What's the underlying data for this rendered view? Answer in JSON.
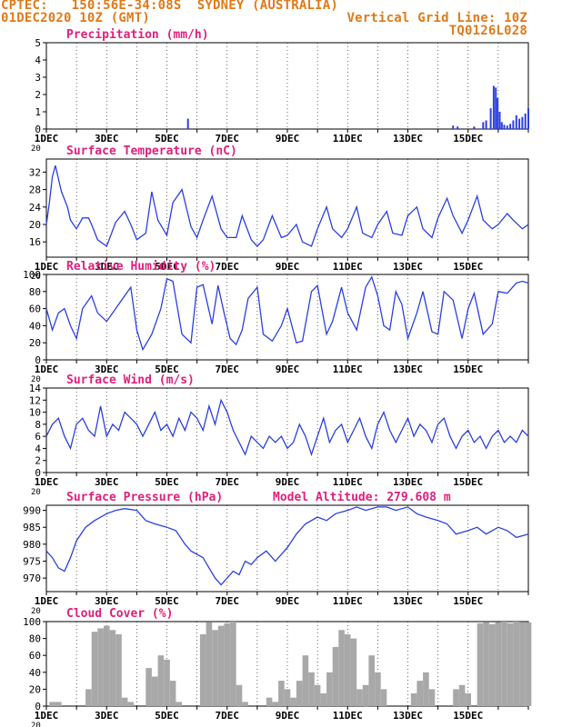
{
  "header": {
    "left_line1": "CPTEC:   150:56E-34:08S  SYDNEY (AUSTRALIA)",
    "left_line2": "01DEC2020 10Z (GMT)",
    "right_line1": "Vertical Grid Line: 10Z",
    "right_line2": "TQ0126L028"
  },
  "colors": {
    "header": "#e07a18",
    "title": "#e0207a",
    "series": "#2b3fe0",
    "cloud": "#a8a8a8",
    "text": "#000000",
    "grid": "#000000"
  },
  "x_ticks": [
    "1DEC",
    "3DEC",
    "5DEC",
    "7DEC",
    "9DEC",
    "11DEC",
    "13DEC",
    "15DEC"
  ],
  "x_axis_stub": "20",
  "chart_data": [
    {
      "id": "precip",
      "type": "bar",
      "title": "Precipitation (mm/h)",
      "ylim": [
        0,
        5
      ],
      "yticks": [
        0,
        1,
        2,
        3,
        4,
        5
      ],
      "x": [
        4.7,
        13.5,
        13.65,
        14.2,
        14.5,
        14.6,
        14.75,
        14.85,
        14.92,
        14.98,
        15.05,
        15.12,
        15.2,
        15.3,
        15.4,
        15.5,
        15.6,
        15.7,
        15.8,
        15.9,
        16.0
      ],
      "values": [
        0.6,
        0.2,
        0.15,
        0.15,
        0.4,
        0.5,
        1.2,
        2.5,
        2.4,
        1.8,
        1.0,
        0.4,
        0.25,
        0.2,
        0.3,
        0.5,
        0.8,
        0.6,
        0.7,
        0.9,
        1.2
      ]
    },
    {
      "id": "temp",
      "type": "line",
      "title": "Surface Temperature (nC)",
      "ylim": [
        12.5,
        35
      ],
      "yticks": [
        16,
        20,
        24,
        28,
        32
      ],
      "x": [
        0,
        0.1,
        0.2,
        0.3,
        0.5,
        0.7,
        0.8,
        1.0,
        1.2,
        1.4,
        1.5,
        1.7,
        2.0,
        2.3,
        2.6,
        2.8,
        3.0,
        3.3,
        3.5,
        3.7,
        4.0,
        4.2,
        4.5,
        4.8,
        5.0,
        5.2,
        5.5,
        5.8,
        6.0,
        6.3,
        6.5,
        6.8,
        7.0,
        7.2,
        7.5,
        7.8,
        8.0,
        8.3,
        8.5,
        8.8,
        9.0,
        9.3,
        9.5,
        9.8,
        10.0,
        10.3,
        10.5,
        10.8,
        11.0,
        11.3,
        11.5,
        11.8,
        12.0,
        12.3,
        12.5,
        12.8,
        13.0,
        13.3,
        13.5,
        13.8,
        14.0,
        14.3,
        14.5,
        14.8,
        15.0,
        15.3,
        15.5,
        15.8,
        16.0
      ],
      "y": [
        20,
        25,
        31,
        33.5,
        27.5,
        24,
        21,
        19,
        21.5,
        21.5,
        20,
        16.5,
        15,
        20.5,
        23,
        20,
        16.5,
        18,
        27.5,
        21,
        17.5,
        25,
        28,
        19.5,
        17,
        21,
        26.5,
        19,
        17,
        17,
        22,
        16.5,
        15,
        16.5,
        22,
        17,
        17.5,
        20,
        16,
        15,
        19,
        24,
        19,
        17,
        19,
        24,
        18,
        17,
        20,
        23,
        18,
        17.5,
        22,
        24,
        19,
        17,
        21.5,
        26,
        22,
        18,
        21,
        26.5,
        21,
        19,
        20,
        22.5,
        21,
        19,
        20
      ]
    },
    {
      "id": "rh",
      "type": "line",
      "title": "Relative Humidity (%)",
      "ylim": [
        0,
        100
      ],
      "yticks": [
        0,
        20,
        40,
        60,
        80,
        100
      ],
      "x": [
        0,
        0.2,
        0.4,
        0.6,
        0.8,
        1.0,
        1.2,
        1.5,
        1.7,
        2.0,
        2.3,
        2.6,
        2.8,
        3.0,
        3.2,
        3.5,
        3.8,
        4.0,
        4.2,
        4.5,
        4.8,
        5.0,
        5.2,
        5.5,
        5.7,
        5.9,
        6.1,
        6.3,
        6.5,
        6.7,
        7.0,
        7.2,
        7.5,
        7.8,
        8.0,
        8.3,
        8.5,
        8.8,
        9.0,
        9.3,
        9.5,
        9.8,
        10.0,
        10.3,
        10.6,
        10.8,
        11.0,
        11.2,
        11.4,
        11.6,
        11.8,
        12.0,
        12.3,
        12.5,
        12.8,
        13.0,
        13.2,
        13.5,
        13.8,
        14.0,
        14.2,
        14.5,
        14.8,
        15.0,
        15.3,
        15.6,
        15.8,
        16.0
      ],
      "y": [
        60,
        35,
        55,
        60,
        40,
        25,
        60,
        75,
        55,
        45,
        60,
        75,
        85,
        35,
        12,
        30,
        60,
        95,
        92,
        30,
        20,
        85,
        88,
        42,
        87,
        55,
        25,
        18,
        35,
        72,
        85,
        30,
        22,
        40,
        60,
        20,
        22,
        80,
        87,
        30,
        45,
        85,
        55,
        35,
        85,
        97,
        75,
        40,
        35,
        80,
        65,
        25,
        55,
        80,
        33,
        30,
        80,
        70,
        25,
        60,
        78,
        30,
        42,
        80,
        78,
        90,
        92,
        90
      ]
    },
    {
      "id": "wind",
      "type": "line",
      "title": "Surface Wind (m/s)",
      "ylim": [
        0,
        14
      ],
      "yticks": [
        0,
        2,
        4,
        6,
        8,
        10,
        12,
        14
      ],
      "x": [
        0,
        0.2,
        0.4,
        0.6,
        0.8,
        1.0,
        1.2,
        1.4,
        1.6,
        1.8,
        2.0,
        2.2,
        2.4,
        2.6,
        2.8,
        3.0,
        3.2,
        3.4,
        3.6,
        3.8,
        4.0,
        4.2,
        4.4,
        4.6,
        4.8,
        5.0,
        5.2,
        5.4,
        5.6,
        5.8,
        6.0,
        6.2,
        6.4,
        6.6,
        6.8,
        7.0,
        7.2,
        7.4,
        7.6,
        7.8,
        8.0,
        8.2,
        8.4,
        8.6,
        8.8,
        9.0,
        9.2,
        9.4,
        9.6,
        9.8,
        10.0,
        10.2,
        10.4,
        10.6,
        10.8,
        11.0,
        11.2,
        11.4,
        11.6,
        11.8,
        12.0,
        12.2,
        12.4,
        12.6,
        12.8,
        13.0,
        13.2,
        13.4,
        13.6,
        13.8,
        14.0,
        14.2,
        14.4,
        14.6,
        14.8,
        15.0,
        15.2,
        15.4,
        15.6,
        15.8,
        16.0
      ],
      "y": [
        6,
        8,
        9,
        6,
        4,
        8,
        9,
        7,
        6,
        11,
        6,
        8,
        7,
        10,
        9,
        8,
        6,
        8,
        10,
        7,
        8,
        6,
        9,
        7,
        10,
        9,
        7,
        11,
        8,
        12,
        10,
        7,
        5,
        3,
        6,
        5,
        4,
        6,
        5,
        6,
        4,
        5,
        8,
        6,
        3,
        6,
        9,
        5,
        7,
        8,
        5,
        7,
        9,
        6,
        4,
        8,
        10,
        7,
        5,
        7,
        9,
        6,
        8,
        7,
        5,
        8,
        9,
        6,
        4,
        6,
        7,
        5,
        6,
        4,
        6,
        7,
        5,
        6,
        5,
        7,
        6
      ]
    },
    {
      "id": "press",
      "type": "line",
      "title": "Surface Pressure (hPa)",
      "annotation": "Model Altitude: 279.608  m",
      "ylim": [
        966,
        991.5
      ],
      "yticks": [
        970,
        975,
        980,
        985,
        990
      ],
      "x": [
        0,
        0.2,
        0.4,
        0.6,
        0.8,
        1.0,
        1.3,
        1.6,
        2.0,
        2.3,
        2.6,
        3.0,
        3.3,
        3.6,
        4.0,
        4.3,
        4.6,
        4.8,
        5.0,
        5.2,
        5.4,
        5.6,
        5.8,
        6.0,
        6.2,
        6.4,
        6.6,
        6.8,
        7.0,
        7.3,
        7.6,
        8.0,
        8.3,
        8.6,
        9.0,
        9.3,
        9.6,
        10.0,
        10.3,
        10.6,
        11.0,
        11.3,
        11.6,
        12.0,
        12.3,
        12.6,
        13.0,
        13.3,
        13.6,
        14.0,
        14.3,
        14.6,
        15.0,
        15.3,
        15.6,
        16.0
      ],
      "y": [
        978,
        976,
        973,
        972,
        976,
        981,
        985,
        987,
        989,
        990,
        990.5,
        990,
        987,
        986,
        985,
        984,
        980,
        978,
        977,
        976,
        973,
        970,
        968,
        970,
        972,
        971,
        975,
        974,
        976,
        978,
        975,
        979,
        983,
        986,
        988,
        987,
        989,
        990,
        991,
        990,
        991,
        991,
        990,
        991,
        989,
        988,
        987,
        986,
        983,
        984,
        985,
        983,
        985,
        984,
        982,
        983
      ]
    },
    {
      "id": "cloud",
      "type": "bar",
      "title": "Cloud Cover (%)",
      "ylim": [
        0,
        100
      ],
      "yticks": [
        0,
        20,
        40,
        60,
        80,
        100
      ],
      "x": [
        0,
        0.2,
        0.4,
        0.6,
        0.8,
        1.0,
        1.2,
        1.4,
        1.6,
        1.8,
        2.0,
        2.2,
        2.4,
        2.6,
        2.8,
        3.0,
        3.2,
        3.4,
        3.6,
        3.8,
        4.0,
        4.2,
        4.4,
        4.6,
        4.8,
        5.0,
        5.2,
        5.4,
        5.6,
        5.8,
        6.0,
        6.2,
        6.4,
        6.6,
        6.8,
        7.0,
        7.2,
        7.4,
        7.6,
        7.8,
        8.0,
        8.2,
        8.4,
        8.6,
        8.8,
        9.0,
        9.2,
        9.4,
        9.6,
        9.8,
        10.0,
        10.2,
        10.4,
        10.6,
        10.8,
        11.0,
        11.2,
        11.4,
        11.6,
        11.8,
        12.0,
        12.2,
        12.4,
        12.6,
        12.8,
        13.0,
        13.2,
        13.4,
        13.6,
        13.8,
        14.0,
        14.2,
        14.4,
        14.6,
        14.8,
        15.0,
        15.2,
        15.4,
        15.6,
        15.8,
        16.0
      ],
      "values": [
        0,
        5,
        5,
        0,
        0,
        0,
        0,
        20,
        88,
        92,
        95,
        90,
        85,
        10,
        5,
        0,
        0,
        45,
        35,
        60,
        55,
        30,
        5,
        0,
        0,
        0,
        85,
        99,
        90,
        95,
        98,
        100,
        25,
        5,
        0,
        0,
        0,
        10,
        5,
        30,
        20,
        10,
        30,
        60,
        40,
        25,
        15,
        40,
        70,
        90,
        85,
        80,
        20,
        25,
        60,
        40,
        20,
        0,
        0,
        0,
        0,
        15,
        30,
        40,
        20,
        0,
        0,
        0,
        20,
        25,
        15,
        0,
        98,
        99,
        97,
        99,
        100,
        98,
        100,
        99,
        99
      ]
    }
  ]
}
